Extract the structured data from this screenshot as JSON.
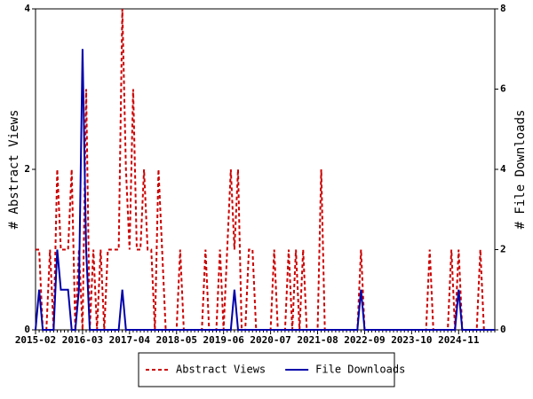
{
  "chart_data": {
    "type": "line",
    "categories": [
      "2015-02",
      null,
      null,
      null,
      null,
      null,
      null,
      null,
      null,
      null,
      null,
      null,
      null,
      "2016-03",
      null,
      null,
      null,
      null,
      null,
      null,
      null,
      null,
      null,
      null,
      null,
      null,
      "2017-04",
      null,
      null,
      null,
      null,
      null,
      null,
      null,
      null,
      null,
      null,
      null,
      null,
      "2018-05",
      null,
      null,
      null,
      null,
      null,
      null,
      null,
      null,
      null,
      null,
      null,
      null,
      "2019-06",
      null,
      null,
      null,
      null,
      null,
      null,
      null,
      null,
      null,
      null,
      null,
      null,
      "2020-07",
      null,
      null,
      null,
      null,
      null,
      null,
      null,
      null,
      null,
      null,
      null,
      null,
      "2021-08",
      null,
      null,
      null,
      null,
      null,
      null,
      null,
      null,
      null,
      null,
      null,
      null,
      "2022-09",
      null,
      null,
      null,
      null,
      null,
      null,
      null,
      null,
      null,
      null,
      null,
      null,
      "2023-10",
      null,
      null,
      null,
      null,
      null,
      null,
      null,
      null,
      null,
      null,
      null,
      null,
      "2024-11",
      null,
      null,
      null,
      null,
      null,
      null,
      null,
      null,
      null,
      null
    ],
    "series": [
      {
        "name": "Abstract Views",
        "color": "#cc0000",
        "dash": true,
        "values": [
          1,
          1,
          0,
          0,
          1,
          0,
          2,
          1,
          1,
          1,
          2,
          0,
          1,
          0,
          3,
          0,
          1,
          0,
          1,
          0,
          1,
          1,
          1,
          1,
          4,
          2,
          1,
          3,
          1,
          1,
          2,
          1,
          1,
          0,
          2,
          1,
          0,
          0,
          0,
          0,
          1,
          0,
          0,
          0,
          0,
          0,
          0,
          1,
          0,
          0,
          0,
          1,
          0,
          1,
          2,
          1,
          2,
          0,
          0,
          1,
          1,
          0,
          0,
          0,
          0,
          0,
          1,
          0,
          0,
          0,
          1,
          0,
          1,
          0,
          1,
          0,
          0,
          0,
          0,
          2,
          0,
          0,
          0,
          0,
          0,
          0,
          0,
          0,
          0,
          0,
          1,
          0,
          0,
          0,
          0,
          0,
          0,
          0,
          0,
          0,
          0,
          0,
          0,
          0,
          0,
          0,
          0,
          0,
          0,
          1,
          0,
          0,
          0,
          0,
          0,
          1,
          0,
          1,
          0,
          0,
          0,
          0,
          0,
          1,
          0,
          0,
          0,
          0
        ]
      },
      {
        "name": "File Downloads",
        "color": "#0000aa",
        "axis": "y2",
        "values": [
          0,
          1,
          0,
          0,
          0,
          0,
          2,
          1,
          1,
          1,
          0,
          0,
          1,
          7,
          2,
          0,
          0,
          0,
          0,
          0,
          0,
          0,
          0,
          0,
          1,
          0,
          0,
          0,
          0,
          0,
          0,
          0,
          0,
          0,
          0,
          0,
          0,
          0,
          0,
          0,
          0,
          0,
          0,
          0,
          0,
          0,
          0,
          0,
          0,
          0,
          0,
          0,
          0,
          0,
          0,
          1,
          0,
          0,
          0,
          0,
          0,
          0,
          0,
          0,
          0,
          0,
          0,
          0,
          0,
          0,
          0,
          0,
          0,
          0,
          0,
          0,
          0,
          0,
          0,
          0,
          0,
          0,
          0,
          0,
          0,
          0,
          0,
          0,
          0,
          0,
          1,
          0,
          0,
          0,
          0,
          0,
          0,
          0,
          0,
          0,
          0,
          0,
          0,
          0,
          0,
          0,
          0,
          0,
          0,
          0,
          0,
          0,
          0,
          0,
          0,
          0,
          0,
          1,
          0,
          0,
          0,
          0,
          0,
          0,
          0,
          0,
          0,
          0
        ]
      }
    ],
    "ylabel": "# Abstract Views",
    "y2label": "# File Downloads",
    "ylim": [
      0,
      4
    ],
    "yticks": [
      0,
      2,
      4
    ],
    "y2lim": [
      0,
      8
    ],
    "y2ticks": [
      0,
      2,
      4,
      6,
      8
    ],
    "legend": "bottom"
  }
}
